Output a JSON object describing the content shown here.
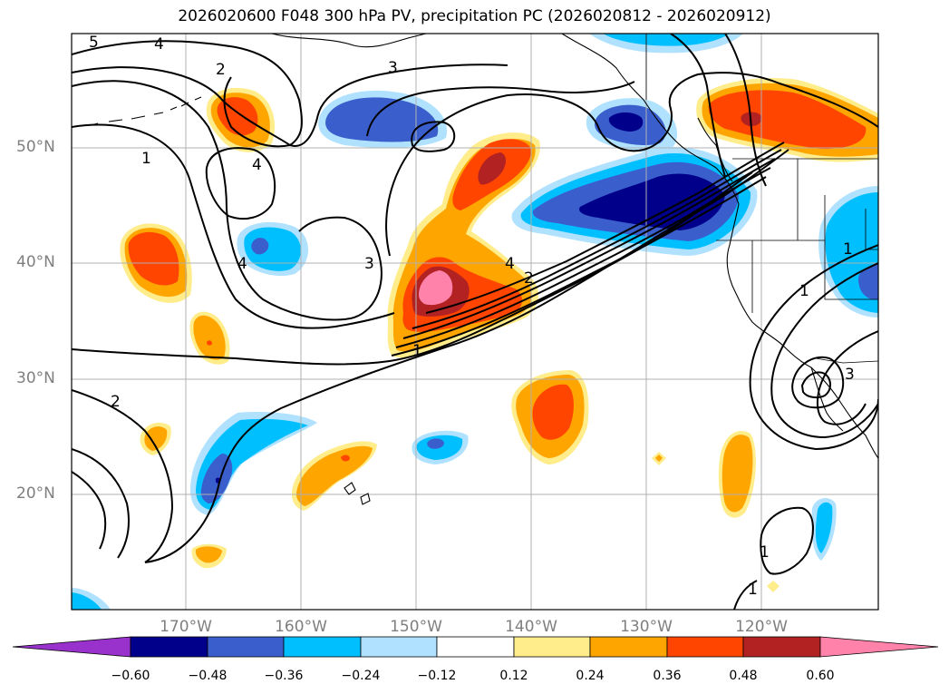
{
  "title": "2026020600 F048 300 hPa PV, precipitation PC (2026020812 - 2026020912)",
  "lat_labels": [
    "50°N",
    "40°N",
    "30°N",
    "20°N"
  ],
  "lon_labels": [
    "170°W",
    "160°W",
    "150°W",
    "140°W",
    "130°W",
    "120°W"
  ],
  "contour_labels": [
    "5",
    "4",
    "2",
    "3",
    "1",
    "4",
    "4",
    "3",
    "4",
    "2",
    "1",
    "2",
    "1",
    "3",
    "1",
    "1",
    "1"
  ],
  "colorbar": {
    "tick_labels": [
      "−0.60",
      "−0.48",
      "−0.36",
      "−0.24",
      "−0.12",
      "0.12",
      "0.24",
      "0.36",
      "0.48",
      "0.60"
    ],
    "colors": [
      "#9932cc",
      "#00008b",
      "#3a5fcd",
      "#00bfff",
      "#b0e2ff",
      "#ffffff",
      "#ffec8b",
      "#ffa500",
      "#ff4500",
      "#b22222",
      "#ff82ab"
    ]
  }
}
